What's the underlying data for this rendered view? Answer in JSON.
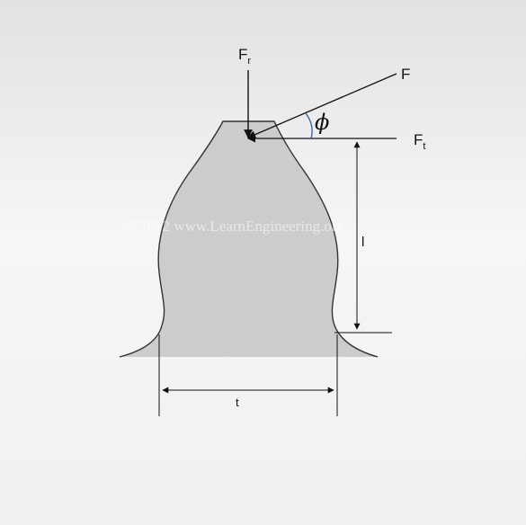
{
  "diagram": {
    "labels": {
      "radial_force": {
        "main": "F",
        "sub": "r"
      },
      "resultant_force": {
        "main": "F"
      },
      "tangential_force": {
        "main": "F",
        "sub": "t"
      },
      "pressure_angle": "ϕ",
      "length": "l",
      "thickness": "t"
    },
    "watermark": "© 2012 www.LearnEngineering.org",
    "colors": {
      "background": "#ebebeb",
      "panel": "#f7f7f7",
      "tooth_fill": "#cccccc",
      "outline": "#333333",
      "angle_arc": "#3a6ea5"
    }
  }
}
